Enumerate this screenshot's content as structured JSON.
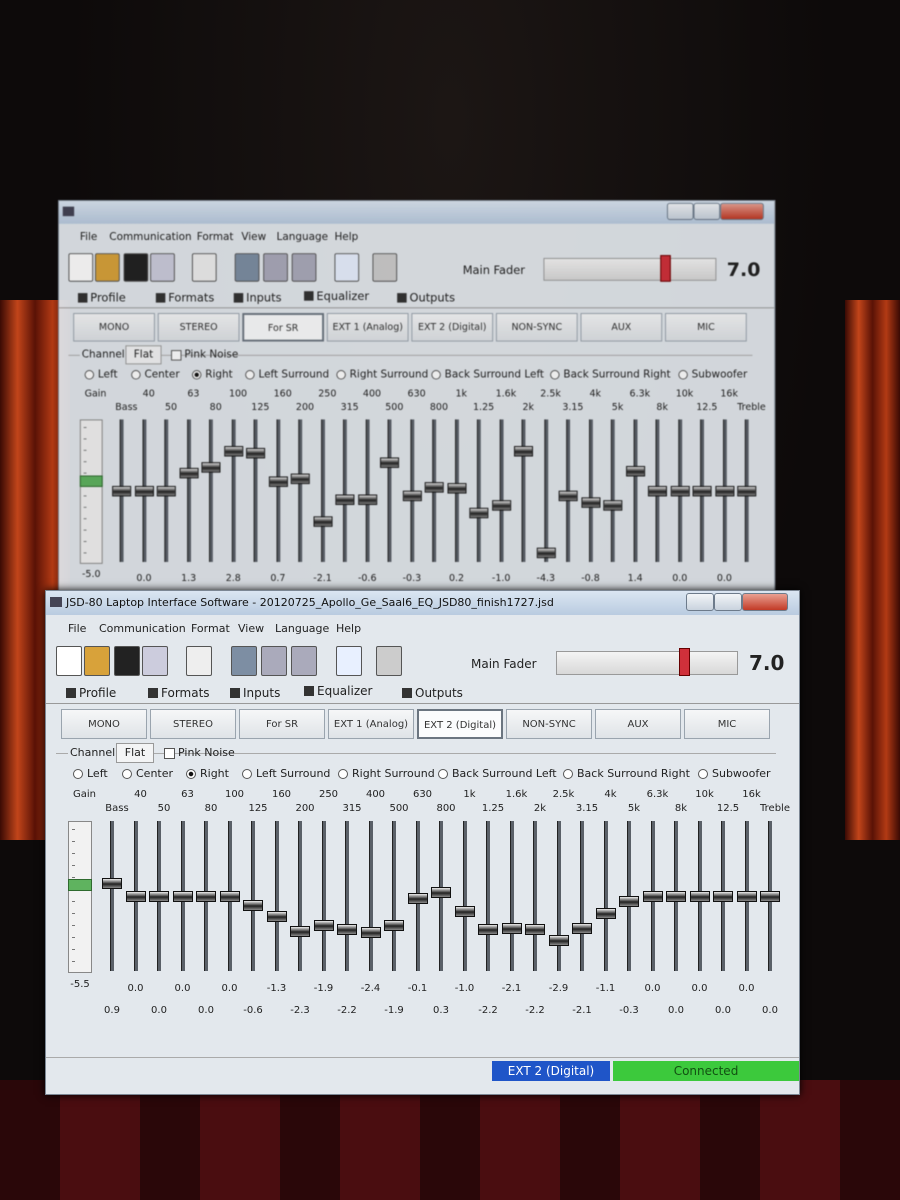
{
  "back_window": {
    "menu": [
      "File",
      "Communication",
      "Format",
      "View",
      "Language",
      "Help"
    ],
    "toolbar": {
      "fader_label": "Main Fader",
      "fader_value": "7.0"
    },
    "tabs": [
      "Profile",
      "Formats",
      "Inputs",
      "Equalizer",
      "Outputs"
    ],
    "selected_tab": 3,
    "modes": [
      "MONO",
      "STEREO",
      "For SR",
      "EXT 1 (Analog)",
      "EXT 2 (Digital)",
      "NON-SYNC",
      "AUX",
      "MIC"
    ],
    "selected_mode": 2,
    "channel": {
      "label": "Channel",
      "flat": "Flat",
      "pink_noise": "Pink Noise",
      "options": [
        "Left",
        "Center",
        "Right",
        "Left Surround",
        "Right Surround",
        "Back Surround Left",
        "Back Surround Right",
        "Subwoofer"
      ],
      "selected": 2
    },
    "eq": {
      "gain_label": "Gain",
      "bands": [
        "Bass",
        "40",
        "50",
        "63",
        "80",
        "100",
        "125",
        "160",
        "200",
        "250",
        "315",
        "400",
        "500",
        "630",
        "800",
        "1k",
        "1.25",
        "1.6k",
        "2k",
        "2.5k",
        "3.15",
        "4k",
        "5k",
        "6.3k",
        "8k",
        "10k",
        "12.5",
        "16k",
        "Treble"
      ],
      "gain_value": "-5.0",
      "levels": [
        0.0,
        0.0,
        0.0,
        1.3,
        1.7,
        2.8,
        2.7,
        0.7,
        0.9,
        -2.1,
        -0.6,
        -0.6,
        2.0,
        -0.3,
        0.3,
        0.2,
        -1.5,
        -1.0,
        2.8,
        -4.3,
        -0.3,
        -0.8,
        -1.0,
        1.4,
        0.0,
        0.0,
        0.0,
        0.0,
        0.0
      ],
      "value_labels": [
        "0.0",
        "1.3",
        "2.8",
        "0.7",
        "-2.1",
        "-0.6",
        "-0.3",
        "0.2",
        "-1.0",
        "-4.3",
        "-0.8",
        "1.4",
        "0.0",
        "0.0"
      ]
    }
  },
  "front_window": {
    "title": "JSD-80 Laptop Interface Software - 20120725_Apollo_Ge_Saal6_EQ_JSD80_finish1727.jsd",
    "menu": [
      "File",
      "Communication",
      "Format",
      "View",
      "Language",
      "Help"
    ],
    "toolbar": {
      "fader_label": "Main Fader",
      "fader_value": "7.0"
    },
    "tabs": [
      "Profile",
      "Formats",
      "Inputs",
      "Equalizer",
      "Outputs"
    ],
    "selected_tab": 3,
    "modes": [
      "MONO",
      "STEREO",
      "For SR",
      "EXT 1 (Analog)",
      "EXT 2 (Digital)",
      "NON-SYNC",
      "AUX",
      "MIC"
    ],
    "selected_mode": 4,
    "channel": {
      "label": "Channel",
      "flat": "Flat",
      "pink_noise": "Pink Noise",
      "options": [
        "Left",
        "Center",
        "Right",
        "Left Surround",
        "Right Surround",
        "Back Surround Left",
        "Back Surround Right",
        "Subwoofer"
      ],
      "selected": 2
    },
    "eq": {
      "gain_label": "Gain",
      "bands": [
        "Bass",
        "40",
        "50",
        "63",
        "80",
        "100",
        "125",
        "160",
        "200",
        "250",
        "315",
        "400",
        "500",
        "630",
        "800",
        "1k",
        "1.25",
        "1.6k",
        "2k",
        "2.5k",
        "3.15",
        "4k",
        "5k",
        "6.3k",
        "8k",
        "10k",
        "12.5",
        "16k",
        "Treble"
      ],
      "gain_value": "-5.5",
      "values": [
        "0.9",
        "0.0",
        "0.0",
        "0.0",
        "0.0",
        "0.0",
        "-0.6",
        "-1.3",
        "-2.3",
        "-1.9",
        "-2.2",
        "-2.4",
        "-1.9",
        "-0.1",
        "0.3",
        "-1.0",
        "-2.2",
        "-2.1",
        "-2.2",
        "-2.9",
        "-2.1",
        "-1.1",
        "-0.3",
        "0.0",
        "0.0",
        "0.0",
        "0.0",
        "0.0",
        "0.0"
      ]
    },
    "status": {
      "mode": "EXT 2 (Digital)",
      "connection": "Connected"
    }
  }
}
